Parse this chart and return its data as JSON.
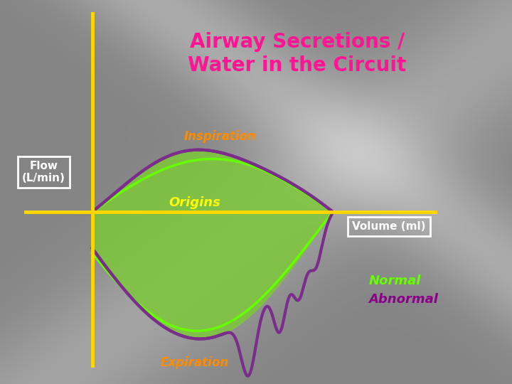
{
  "title_line1": "Airway Secretions /",
  "title_line2": "Water in the Circuit",
  "title_color": "#FF1493",
  "inspiration_label": "Inspiration",
  "expiration_label": "Expiration",
  "flow_label": "Flow\n(L/min)",
  "volume_label": "Volume (ml)",
  "origins_label": "Origins",
  "normal_label": "Normal",
  "abnormal_label": "Abnormal",
  "normal_color": "#66FF00",
  "abnormal_color": "#8B008B",
  "origins_color": "#FFFF00",
  "axis_color": "#FFD700",
  "label_color": "#FF8C00",
  "fill_color_normal": "#7DC83A",
  "fill_color_bright": "#66FF00",
  "fill_color_abnormal_outline": "#7B2D8B",
  "figsize": [
    7.2,
    5.4
  ],
  "dpi": 100
}
